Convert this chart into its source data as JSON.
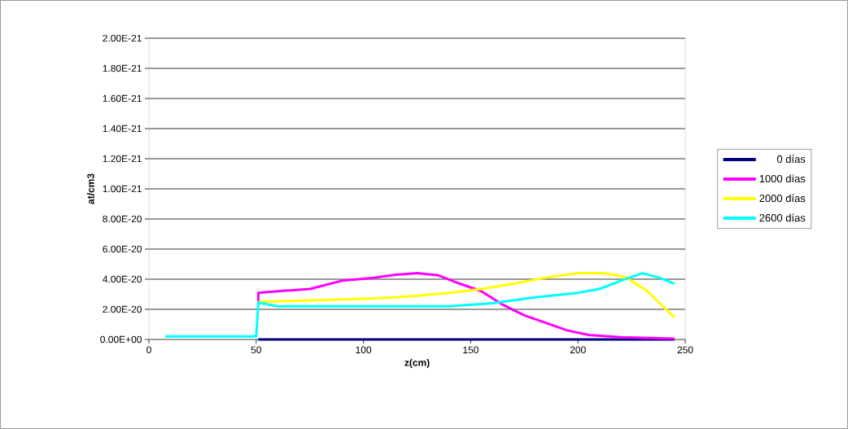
{
  "chart_data": {
    "type": "line",
    "xlabel": "z(cm)",
    "ylabel": "at/cm3",
    "xlim": [
      0,
      250
    ],
    "xticks": [
      0,
      50,
      100,
      150,
      200,
      250
    ],
    "ylim": [
      0,
      2e-19
    ],
    "yticks": [
      {
        "value": 0,
        "label": "0.00E+00"
      },
      {
        "value": 2e-20,
        "label": "2.00E-20"
      },
      {
        "value": 4e-20,
        "label": "4.00E-20"
      },
      {
        "value": 6e-20,
        "label": "6.00E-20"
      },
      {
        "value": 8e-20,
        "label": "8.00E-20"
      },
      {
        "value": 1e-19,
        "label": "1.00E-21"
      },
      {
        "value": 1.2e-19,
        "label": "1.20E-21"
      },
      {
        "value": 1.4e-19,
        "label": "1.40E-21"
      },
      {
        "value": 1.6e-19,
        "label": "1.60E-21"
      },
      {
        "value": 1.8e-19,
        "label": "1.80E-21"
      },
      {
        "value": 2e-19,
        "label": "2.00E-21"
      }
    ],
    "grid": "y",
    "legend": "right",
    "marker": "none",
    "line_style": "solid",
    "series": [
      {
        "name": "0 días",
        "color": "#000080",
        "x": [
          51,
          100,
          150,
          200,
          245
        ],
        "values": [
          0,
          0,
          0,
          0,
          0
        ]
      },
      {
        "name": "1000 días",
        "color": "#ff00ff",
        "x": [
          51,
          51,
          60,
          75,
          90,
          105,
          115,
          125,
          135,
          145,
          155,
          165,
          175,
          185,
          195,
          205,
          220,
          245
        ],
        "values": [
          2.5e-20,
          3.1e-20,
          3.2e-20,
          3.35e-20,
          3.9e-20,
          4.1e-20,
          4.3e-20,
          4.4e-20,
          4.25e-20,
          3.7e-20,
          3.2e-20,
          2.3e-20,
          1.6e-20,
          1.1e-20,
          6e-21,
          3e-21,
          1.5e-21,
          5e-22
        ]
      },
      {
        "name": "2000 días",
        "color": "#ffff00",
        "x": [
          51,
          75,
          100,
          115,
          125,
          140,
          155,
          170,
          185,
          200,
          212,
          222,
          232,
          240,
          245
        ],
        "values": [
          2.5e-20,
          2.6e-20,
          2.7e-20,
          2.8e-20,
          2.9e-20,
          3.1e-20,
          3.35e-20,
          3.7e-20,
          4.1e-20,
          4.4e-20,
          4.4e-20,
          4.15e-20,
          3.25e-20,
          2.15e-20,
          1.45e-20
        ]
      },
      {
        "name": "2600 días",
        "color": "#00ffff",
        "x": [
          7.6,
          50,
          51,
          60,
          100,
          140,
          160,
          180,
          200,
          210,
          220,
          230,
          238,
          245
        ],
        "values": [
          2e-21,
          2e-21,
          2.45e-20,
          2.2e-20,
          2.2e-20,
          2.2e-20,
          2.4e-20,
          2.8e-20,
          3.1e-20,
          3.35e-20,
          3.9e-20,
          4.4e-20,
          4.1e-20,
          3.7e-20
        ]
      }
    ]
  }
}
